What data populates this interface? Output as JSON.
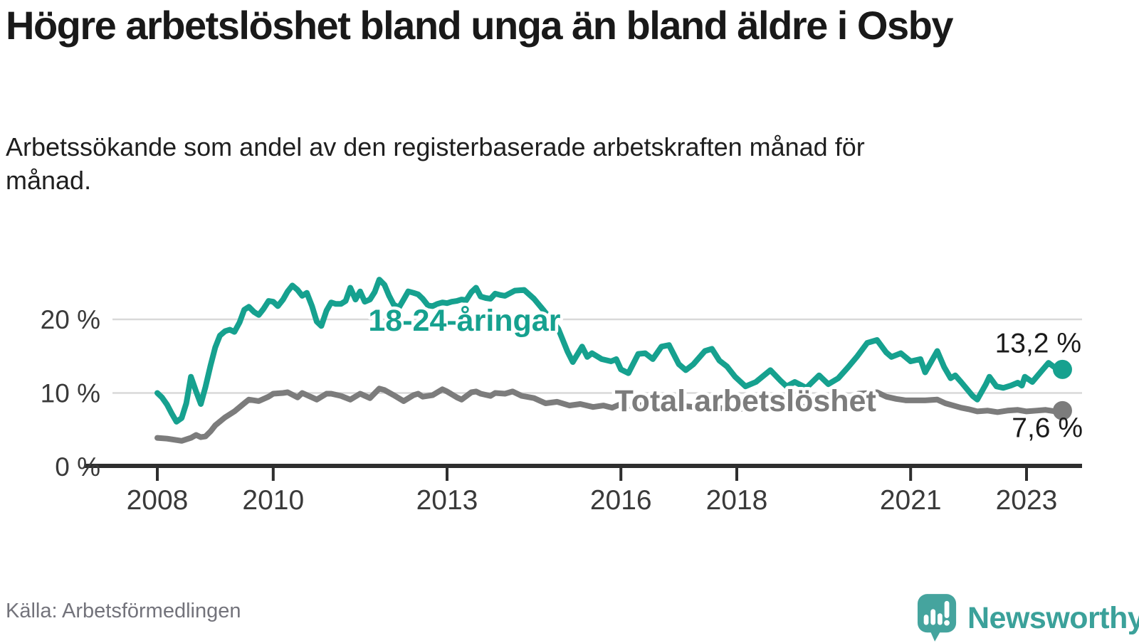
{
  "header": {
    "title": "Högre arbetslöshet bland unga än bland äldre i Osby",
    "subtitle": "Arbetssökande som andel av den registerbaserade arbetskraften månad för månad."
  },
  "footer": {
    "source": "Källa: Arbetsförmedlingen",
    "brand": "Newsworthy",
    "brand_icon": "bar-chart-speech-bubble-icon",
    "brand_color": "#3ba19a",
    "brand_icon_color": "#45a49e"
  },
  "chart_data": {
    "type": "line",
    "title": "Högre arbetslöshet bland unga än bland äldre i Osby",
    "subtitle": "Arbetssökande som andel av den registerbaserade arbetskraften månad för månad.",
    "grid": "horizontal",
    "legend_position": "inline-labels",
    "xlim": [
      2007.3,
      2023.95
    ],
    "ylim": [
      0,
      26.5
    ],
    "x_ticks": [
      2008,
      2010,
      2013,
      2016,
      2018,
      2021,
      2023
    ],
    "x_tick_labels": [
      "2008",
      "2010",
      "2013",
      "2016",
      "2018",
      "2021",
      "2023"
    ],
    "y_ticks": [
      0,
      10,
      20
    ],
    "y_tick_labels": [
      "0 %",
      "10 %",
      "20 %"
    ],
    "colors": {
      "grid": "#d9d9d9",
      "axis": "#2e2e2e",
      "tick_text": "#3a3a3a",
      "value_text": "#1a1a1a"
    },
    "annotations": [
      {
        "text": "18-24-åringar",
        "x": 2013.3,
        "y": 19.9,
        "color": "#16a18f"
      },
      {
        "text": "Total arbetslöshet",
        "x": 2018.15,
        "y": 9.0,
        "color": "#7c7c7c"
      }
    ],
    "series": [
      {
        "name": "18-24-åringar",
        "color": "#16a18f",
        "end_value": 13.2,
        "end_label": "13,2 %",
        "points": [
          [
            2008.0,
            10.0
          ],
          [
            2008.08,
            9.4
          ],
          [
            2008.17,
            8.4
          ],
          [
            2008.25,
            7.2
          ],
          [
            2008.33,
            6.1
          ],
          [
            2008.42,
            6.6
          ],
          [
            2008.5,
            8.6
          ],
          [
            2008.58,
            12.2
          ],
          [
            2008.67,
            10.2
          ],
          [
            2008.75,
            8.5
          ],
          [
            2008.83,
            10.8
          ],
          [
            2008.92,
            13.8
          ],
          [
            2009.0,
            16.2
          ],
          [
            2009.08,
            17.8
          ],
          [
            2009.17,
            18.4
          ],
          [
            2009.25,
            18.6
          ],
          [
            2009.33,
            18.3
          ],
          [
            2009.42,
            19.6
          ],
          [
            2009.5,
            21.3
          ],
          [
            2009.58,
            21.7
          ],
          [
            2009.67,
            21.0
          ],
          [
            2009.75,
            20.6
          ],
          [
            2009.83,
            21.4
          ],
          [
            2009.92,
            22.5
          ],
          [
            2010.0,
            22.4
          ],
          [
            2010.08,
            21.8
          ],
          [
            2010.17,
            22.7
          ],
          [
            2010.25,
            23.8
          ],
          [
            2010.33,
            24.6
          ],
          [
            2010.42,
            24.0
          ],
          [
            2010.5,
            23.2
          ],
          [
            2010.58,
            23.6
          ],
          [
            2010.67,
            21.8
          ],
          [
            2010.75,
            19.7
          ],
          [
            2010.83,
            19.1
          ],
          [
            2010.92,
            21.2
          ],
          [
            2011.0,
            22.3
          ],
          [
            2011.08,
            22.1
          ],
          [
            2011.17,
            22.1
          ],
          [
            2011.25,
            22.5
          ],
          [
            2011.33,
            24.3
          ],
          [
            2011.42,
            22.7
          ],
          [
            2011.5,
            23.8
          ],
          [
            2011.58,
            22.4
          ],
          [
            2011.67,
            22.7
          ],
          [
            2011.75,
            23.7
          ],
          [
            2011.83,
            25.4
          ],
          [
            2011.92,
            24.7
          ],
          [
            2012.0,
            23.2
          ],
          [
            2012.08,
            22.0
          ],
          [
            2012.17,
            21.6
          ],
          [
            2012.25,
            22.7
          ],
          [
            2012.33,
            23.8
          ],
          [
            2012.42,
            23.6
          ],
          [
            2012.5,
            23.4
          ],
          [
            2012.58,
            22.8
          ],
          [
            2012.67,
            21.9
          ],
          [
            2012.75,
            21.8
          ],
          [
            2012.83,
            22.1
          ],
          [
            2012.92,
            22.3
          ],
          [
            2013.0,
            22.2
          ],
          [
            2013.08,
            22.4
          ],
          [
            2013.17,
            22.5
          ],
          [
            2013.25,
            22.7
          ],
          [
            2013.33,
            22.6
          ],
          [
            2013.42,
            23.7
          ],
          [
            2013.5,
            24.3
          ],
          [
            2013.58,
            23.1
          ],
          [
            2013.67,
            22.9
          ],
          [
            2013.75,
            22.8
          ],
          [
            2013.83,
            23.5
          ],
          [
            2013.92,
            23.3
          ],
          [
            2014.0,
            23.2
          ],
          [
            2014.17,
            23.9
          ],
          [
            2014.33,
            24.0
          ],
          [
            2014.5,
            22.8
          ],
          [
            2014.67,
            21.2
          ],
          [
            2014.83,
            19.6
          ],
          [
            2014.92,
            18.7
          ],
          [
            2015.08,
            15.6
          ],
          [
            2015.17,
            14.2
          ],
          [
            2015.33,
            16.3
          ],
          [
            2015.42,
            14.9
          ],
          [
            2015.5,
            15.4
          ],
          [
            2015.67,
            14.6
          ],
          [
            2015.83,
            14.3
          ],
          [
            2015.92,
            14.6
          ],
          [
            2016.0,
            13.2
          ],
          [
            2016.13,
            12.7
          ],
          [
            2016.3,
            15.3
          ],
          [
            2016.42,
            15.4
          ],
          [
            2016.55,
            14.6
          ],
          [
            2016.7,
            16.3
          ],
          [
            2016.83,
            16.5
          ],
          [
            2017.0,
            13.9
          ],
          [
            2017.12,
            13.1
          ],
          [
            2017.25,
            13.9
          ],
          [
            2017.45,
            15.7
          ],
          [
            2017.57,
            16.0
          ],
          [
            2017.7,
            14.4
          ],
          [
            2017.83,
            13.6
          ],
          [
            2017.97,
            12.2
          ],
          [
            2018.15,
            10.9
          ],
          [
            2018.33,
            11.5
          ],
          [
            2018.58,
            13.1
          ],
          [
            2018.75,
            11.7
          ],
          [
            2018.86,
            10.9
          ],
          [
            2019.0,
            11.5
          ],
          [
            2019.2,
            10.7
          ],
          [
            2019.42,
            12.4
          ],
          [
            2019.58,
            11.2
          ],
          [
            2019.75,
            12.0
          ],
          [
            2019.92,
            13.5
          ],
          [
            2020.08,
            15.0
          ],
          [
            2020.25,
            16.8
          ],
          [
            2020.42,
            17.2
          ],
          [
            2020.58,
            15.5
          ],
          [
            2020.67,
            14.9
          ],
          [
            2020.83,
            15.4
          ],
          [
            2021.0,
            14.3
          ],
          [
            2021.17,
            14.6
          ],
          [
            2021.25,
            12.8
          ],
          [
            2021.46,
            15.7
          ],
          [
            2021.58,
            13.5
          ],
          [
            2021.69,
            12.0
          ],
          [
            2021.77,
            12.4
          ],
          [
            2021.87,
            11.5
          ],
          [
            2022.07,
            9.6
          ],
          [
            2022.15,
            9.1
          ],
          [
            2022.3,
            11.2
          ],
          [
            2022.36,
            12.2
          ],
          [
            2022.48,
            10.9
          ],
          [
            2022.6,
            10.7
          ],
          [
            2022.73,
            11.0
          ],
          [
            2022.85,
            11.4
          ],
          [
            2022.92,
            11.0
          ],
          [
            2022.97,
            12.2
          ],
          [
            2023.1,
            11.5
          ],
          [
            2023.26,
            13.0
          ],
          [
            2023.38,
            14.1
          ],
          [
            2023.5,
            13.4
          ],
          [
            2023.62,
            13.2
          ]
        ]
      },
      {
        "name": "Total arbetslöshet",
        "color": "#7c7c7c",
        "end_value": 7.6,
        "end_label": "7,6 %",
        "points": [
          [
            2008.0,
            3.9
          ],
          [
            2008.17,
            3.8
          ],
          [
            2008.33,
            3.6
          ],
          [
            2008.42,
            3.5
          ],
          [
            2008.58,
            3.9
          ],
          [
            2008.67,
            4.3
          ],
          [
            2008.75,
            4.0
          ],
          [
            2008.83,
            4.1
          ],
          [
            2008.92,
            4.8
          ],
          [
            2009.0,
            5.6
          ],
          [
            2009.17,
            6.7
          ],
          [
            2009.33,
            7.5
          ],
          [
            2009.5,
            8.6
          ],
          [
            2009.58,
            9.1
          ],
          [
            2009.75,
            8.9
          ],
          [
            2009.92,
            9.5
          ],
          [
            2010.0,
            9.9
          ],
          [
            2010.17,
            10.0
          ],
          [
            2010.25,
            10.1
          ],
          [
            2010.42,
            9.4
          ],
          [
            2010.5,
            10.0
          ],
          [
            2010.67,
            9.4
          ],
          [
            2010.75,
            9.1
          ],
          [
            2010.92,
            9.9
          ],
          [
            2011.0,
            9.9
          ],
          [
            2011.17,
            9.6
          ],
          [
            2011.33,
            9.1
          ],
          [
            2011.5,
            9.9
          ],
          [
            2011.67,
            9.3
          ],
          [
            2011.83,
            10.6
          ],
          [
            2011.92,
            10.4
          ],
          [
            2012.08,
            9.7
          ],
          [
            2012.25,
            8.9
          ],
          [
            2012.42,
            9.7
          ],
          [
            2012.5,
            9.9
          ],
          [
            2012.58,
            9.5
          ],
          [
            2012.75,
            9.7
          ],
          [
            2012.92,
            10.5
          ],
          [
            2013.0,
            10.2
          ],
          [
            2013.17,
            9.4
          ],
          [
            2013.25,
            9.1
          ],
          [
            2013.42,
            10.1
          ],
          [
            2013.5,
            10.2
          ],
          [
            2013.58,
            9.9
          ],
          [
            2013.75,
            9.6
          ],
          [
            2013.83,
            10.0
          ],
          [
            2014.0,
            9.9
          ],
          [
            2014.13,
            10.2
          ],
          [
            2014.29,
            9.6
          ],
          [
            2014.5,
            9.3
          ],
          [
            2014.7,
            8.6
          ],
          [
            2014.9,
            8.8
          ],
          [
            2015.11,
            8.3
          ],
          [
            2015.3,
            8.5
          ],
          [
            2015.52,
            8.1
          ],
          [
            2015.7,
            8.3
          ],
          [
            2015.85,
            8.0
          ],
          [
            2016.0,
            8.5
          ],
          [
            2016.2,
            8.2
          ],
          [
            2016.4,
            8.4
          ],
          [
            2016.6,
            8.2
          ],
          [
            2016.8,
            8.4
          ],
          [
            2017.0,
            8.3
          ],
          [
            2017.25,
            8.1
          ],
          [
            2017.5,
            8.3
          ],
          [
            2017.75,
            7.9
          ],
          [
            2018.0,
            7.8
          ],
          [
            2018.25,
            8.0
          ],
          [
            2018.5,
            7.8
          ],
          [
            2018.75,
            7.9
          ],
          [
            2019.0,
            8.0
          ],
          [
            2019.25,
            8.2
          ],
          [
            2019.5,
            8.1
          ],
          [
            2019.75,
            8.4
          ],
          [
            2019.92,
            8.8
          ],
          [
            2020.1,
            9.9
          ],
          [
            2020.3,
            10.0
          ],
          [
            2020.42,
            10.1
          ],
          [
            2020.58,
            9.5
          ],
          [
            2020.75,
            9.2
          ],
          [
            2020.92,
            9.0
          ],
          [
            2021.08,
            9.0
          ],
          [
            2021.25,
            9.0
          ],
          [
            2021.46,
            9.1
          ],
          [
            2021.6,
            8.6
          ],
          [
            2021.87,
            8.0
          ],
          [
            2022.0,
            7.8
          ],
          [
            2022.15,
            7.5
          ],
          [
            2022.33,
            7.6
          ],
          [
            2022.5,
            7.4
          ],
          [
            2022.67,
            7.6
          ],
          [
            2022.85,
            7.7
          ],
          [
            2023.0,
            7.5
          ],
          [
            2023.17,
            7.6
          ],
          [
            2023.33,
            7.7
          ],
          [
            2023.5,
            7.5
          ],
          [
            2023.62,
            7.6
          ]
        ]
      }
    ]
  }
}
